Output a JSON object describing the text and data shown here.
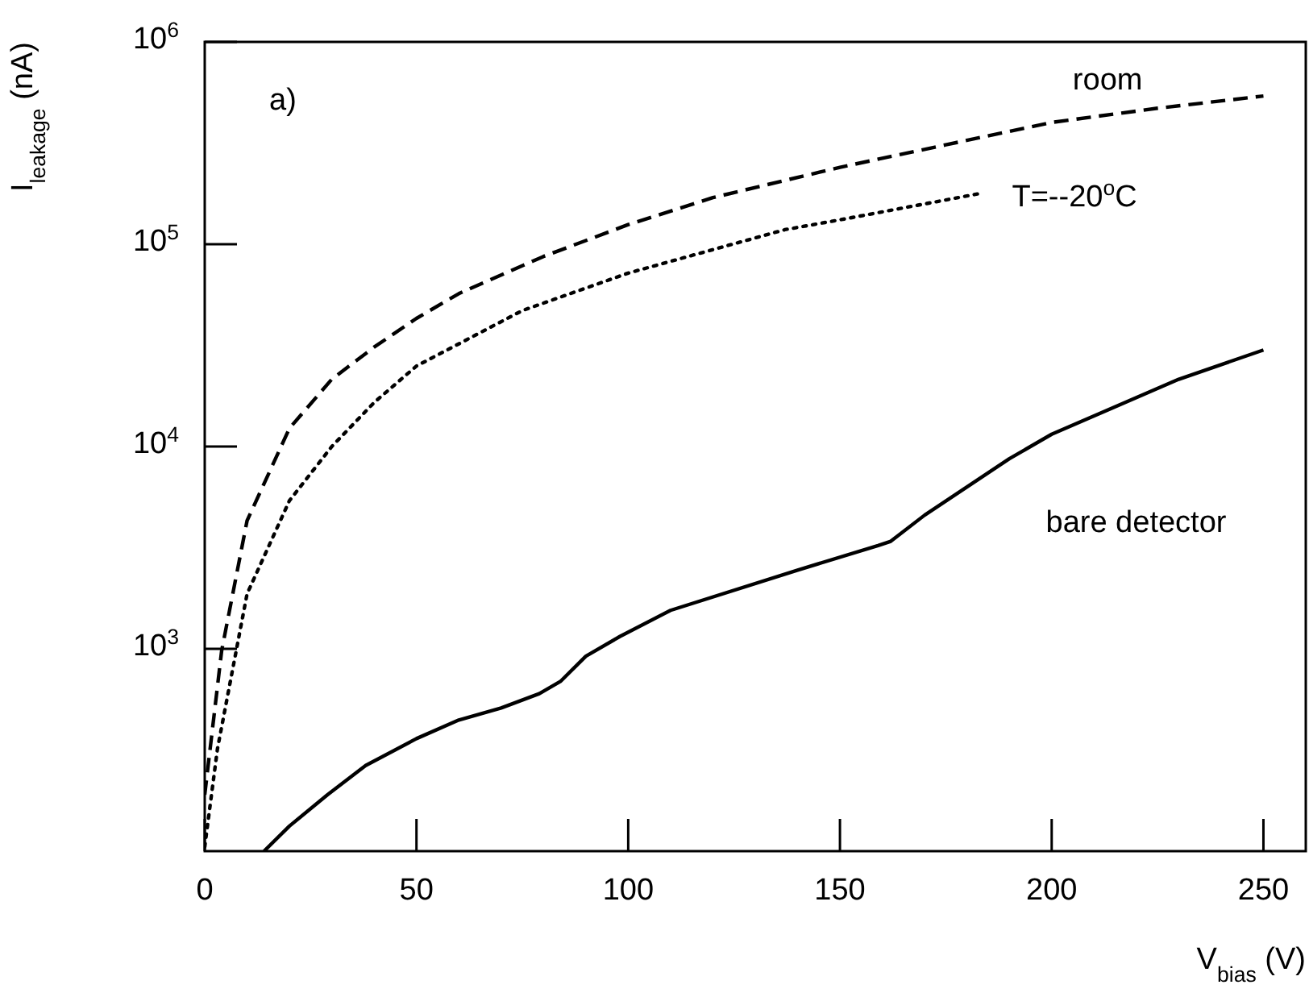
{
  "chart_data": {
    "type": "line",
    "xlabel": "V$_{bias}$ (V)",
    "ylabel": "I$_{leakage}$ (nA)",
    "annotations": [
      "a)"
    ],
    "log": "y",
    "legend": false,
    "grid": false,
    "xlim": [
      0,
      260
    ],
    "xticks": [
      0,
      50,
      100,
      150,
      200,
      250
    ],
    "ylim": [
      100,
      1000000
    ],
    "yticks": [
      {
        "value": 1000,
        "label": "10$^{3}$"
      },
      {
        "value": 10000,
        "label": "10$^{4}$"
      },
      {
        "value": 100000,
        "label": "10$^{5}$"
      },
      {
        "value": 1000000,
        "label": "10$^{6}$"
      }
    ],
    "series": [
      {
        "name": "room",
        "color": "#000000",
        "line_style": "dashed",
        "x": [
          0,
          4,
          10,
          20,
          30,
          40,
          50,
          60,
          80,
          100,
          120,
          150,
          175,
          200,
          225,
          250
        ],
        "values": [
          190,
          980,
          4300,
          12300,
          21500,
          31000,
          43000,
          57000,
          87000,
          125000,
          170000,
          240000,
          310000,
          400000,
          470000,
          540000
        ]
      },
      {
        "name": "T=--20$^{o}$C",
        "color": "#000000",
        "line_style": "dotted",
        "x": [
          0,
          3,
          10,
          20,
          30,
          40,
          50,
          75,
          100,
          137,
          150,
          183
        ],
        "values": [
          105,
          320,
          1870,
          5400,
          10000,
          16500,
          25000,
          47000,
          72000,
          118000,
          132000,
          178000
        ]
      },
      {
        "name": "bare detector",
        "color": "#000000",
        "line_style": "solid",
        "x": [
          14,
          20,
          29,
          38,
          50,
          60,
          70,
          79,
          84,
          90,
          98,
          110,
          140,
          159,
          162,
          170,
          190,
          200,
          230,
          250
        ],
        "values": [
          100,
          133,
          190,
          265,
          360,
          445,
          510,
          600,
          690,
          920,
          1150,
          1550,
          2450,
          3240,
          3400,
          4580,
          8700,
          11500,
          21500,
          30000
        ]
      }
    ]
  }
}
